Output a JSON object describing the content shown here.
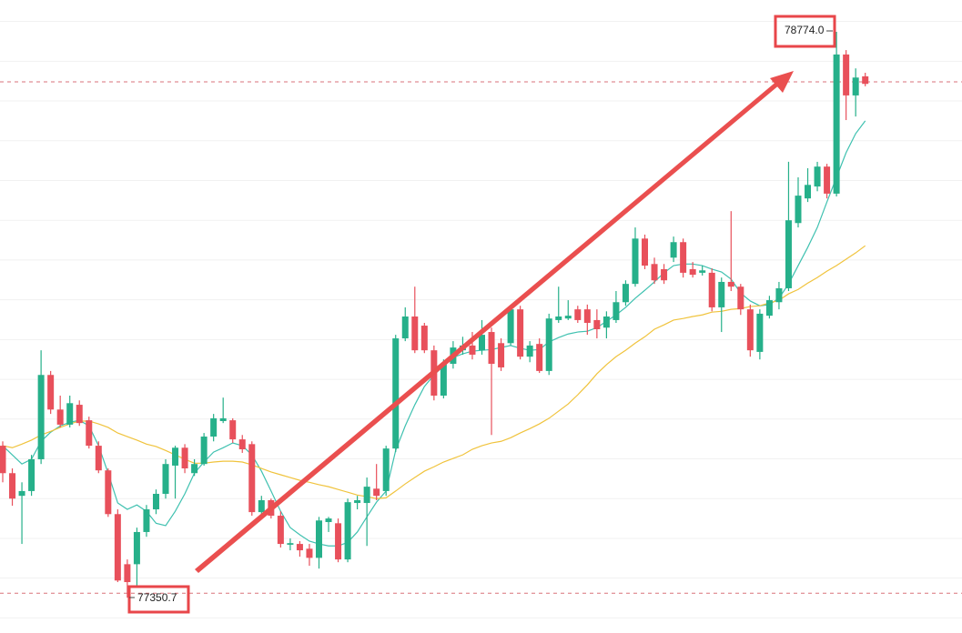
{
  "chart_data": {
    "type": "candlestick",
    "ylim": [
      77262,
      78854
    ],
    "yticks": [
      77300,
      77400,
      77500,
      77600,
      77700,
      77800,
      77900,
      78000,
      78100,
      78200,
      78300,
      78400,
      78500,
      78600,
      78700,
      78800
    ],
    "grid": true,
    "up_color": "#26b08a",
    "down_color": "#e8505b",
    "open": [
      77733,
      77664,
      77607,
      77619,
      77699,
      77911,
      77824,
      77786,
      77836,
      77797,
      77733,
      77671,
      77561,
      77435,
      77435,
      77516,
      77573,
      77612,
      77683,
      77728,
      77664,
      77687,
      77756,
      77795,
      77797,
      77749,
      77737,
      77566,
      77596,
      77557,
      77484,
      77486,
      77474,
      77451,
      77541,
      77538,
      77447,
      77589,
      77589,
      77625,
      77619,
      77726,
      78003,
      78058,
      78035,
      77973,
      77859,
      77939,
      77973,
      77985,
      77973,
      78019,
      77991,
      77991,
      78076,
      77957,
      77989,
      77921,
      78049,
      78053,
      78076,
      78076,
      78049,
      78030,
      78049,
      78094,
      78140,
      78254,
      78190,
      78177,
      78206,
      78245,
      78177,
      78168,
      78168,
      78081,
      78145,
      78133,
      78076,
      77969,
      78060,
      78094,
      78129,
      78293,
      78355,
      78385,
      78435,
      78367,
      78717,
      78614,
      78662
    ],
    "high": [
      77744,
      77676,
      77641,
      77710,
      77973,
      77921,
      77859,
      77859,
      77847,
      77806,
      77744,
      77676,
      77573,
      77447,
      77527,
      77584,
      77623,
      77699,
      77733,
      77737,
      77699,
      77765,
      77813,
      77854,
      77802,
      77760,
      77744,
      77607,
      77600,
      77568,
      77500,
      77493,
      77486,
      77554,
      77554,
      77550,
      77600,
      77607,
      77653,
      77687,
      77733,
      78012,
      78081,
      78133,
      78042,
      77985,
      77950,
      77996,
      78007,
      78019,
      78049,
      78030,
      78003,
      78081,
      78085,
      77996,
      78003,
      78065,
      78133,
      78099,
      78085,
      78088,
      78076,
      78071,
      78122,
      78149,
      78282,
      78264,
      78206,
      78190,
      78259,
      78254,
      78195,
      78186,
      78179,
      78156,
      78323,
      78140,
      78088,
      78076,
      78110,
      78145,
      78447,
      78408,
      78431,
      78447,
      78442,
      78774,
      78728,
      78682,
      78671
    ],
    "low": [
      77641,
      77582,
      77486,
      77607,
      77687,
      77813,
      77779,
      77779,
      77783,
      77726,
      77664,
      77554,
      77390,
      77350.7,
      77378,
      77504,
      77561,
      77600,
      77600,
      77664,
      77657,
      77683,
      77744,
      77790,
      77740,
      77715,
      77557,
      77559,
      77550,
      77477,
      77470,
      77454,
      77431,
      77424,
      77516,
      77440,
      77440,
      77573,
      77481,
      77596,
      77607,
      77717,
      77996,
      77966,
      77966,
      77847,
      77852,
      77927,
      77962,
      77950,
      77962,
      77760,
      77921,
      77985,
      77950,
      77943,
      77916,
      77911,
      78042,
      78049,
      78042,
      78012,
      78003,
      78003,
      78042,
      78085,
      78133,
      78177,
      78140,
      78140,
      78195,
      78156,
      78156,
      78161,
      78071,
      78019,
      78122,
      78062,
      77957,
      77950,
      78053,
      78076,
      78122,
      78282,
      78346,
      78373,
      78355,
      78360,
      78552,
      78561,
      78637
    ],
    "close": [
      77664,
      77600,
      77619,
      77699,
      77911,
      77824,
      77786,
      77840,
      77790,
      77733,
      77671,
      77561,
      77394,
      77390,
      77516,
      77573,
      77612,
      77687,
      77728,
      77676,
      77687,
      77756,
      77802,
      77802,
      77749,
      77724,
      77566,
      77596,
      77557,
      77486,
      77488,
      77470,
      77451,
      77545,
      77550,
      77447,
      77591,
      77596,
      77630,
      77607,
      77726,
      78003,
      78058,
      77973,
      77973,
      77859,
      77939,
      77980,
      77985,
      77962,
      78012,
      77939,
      77930,
      78076,
      77957,
      77985,
      77921,
      78053,
      78058,
      78060,
      78049,
      78042,
      78026,
      78058,
      78094,
      78140,
      78254,
      78186,
      78149,
      78149,
      78245,
      78168,
      78163,
      78174,
      78081,
      78145,
      78133,
      78076,
      77973,
      78065,
      78099,
      78129,
      78300,
      78362,
      78389,
      78435,
      78367,
      78717,
      78614,
      78659,
      78643
    ],
    "series": [
      {
        "color": "#3fc1b0",
        "values": [
          77733,
          77710,
          77687,
          77699,
          77744,
          77767,
          77783,
          77792,
          77797,
          77783,
          77733,
          77664,
          77589,
          77573,
          77584,
          77568,
          77538,
          77532,
          77568,
          77612,
          77664,
          77692,
          77717,
          77728,
          77740,
          77733,
          77710,
          77669,
          77619,
          77568,
          77527,
          77509,
          77493,
          77486,
          77481,
          77481,
          77490,
          77516,
          77554,
          77591,
          77619,
          77721,
          77783,
          77836,
          77882,
          77911,
          77934,
          77955,
          77964,
          77971,
          77973,
          77975,
          77980,
          77985,
          77978,
          77973,
          77975,
          77994,
          78005,
          78014,
          78019,
          78021,
          78030,
          78046,
          78062,
          78081,
          78104,
          78124,
          78145,
          78168,
          78186,
          78190,
          78190,
          78186,
          78177,
          78170,
          78152,
          78117,
          78097,
          78085,
          78088,
          78104,
          78140,
          78186,
          78232,
          78282,
          78346,
          78408,
          78470,
          78518,
          78550
        ]
      },
      {
        "color": "#f0c33c",
        "values": [
          77733,
          77728,
          77737,
          77747,
          77760,
          77769,
          77779,
          77788,
          77795,
          77795,
          77788,
          77779,
          77765,
          77756,
          77747,
          77737,
          77731,
          77721,
          77710,
          77699,
          77689,
          77689,
          77692,
          77694,
          77694,
          77692,
          77685,
          77676,
          77667,
          77660,
          77653,
          77646,
          77641,
          77635,
          77630,
          77623,
          77616,
          77609,
          77605,
          77600,
          77602,
          77619,
          77637,
          77653,
          77669,
          77680,
          77692,
          77701,
          77710,
          77724,
          77733,
          77740,
          77744,
          77753,
          77765,
          77776,
          77788,
          77802,
          77820,
          77838,
          77861,
          77886,
          77914,
          77937,
          77957,
          77973,
          77991,
          78007,
          78026,
          78037,
          78049,
          78053,
          78058,
          78062,
          78069,
          78071,
          78076,
          78078,
          78083,
          78085,
          78092,
          78099,
          78115,
          78126,
          78142,
          78156,
          78172,
          78186,
          78202,
          78218,
          78236
        ]
      }
    ],
    "reference_lines": [
      78648,
      77362
    ],
    "annotations": [
      {
        "text": "78774.0",
        "value": 78774
      },
      {
        "text": "77350.7",
        "value": 77350.7
      }
    ]
  }
}
